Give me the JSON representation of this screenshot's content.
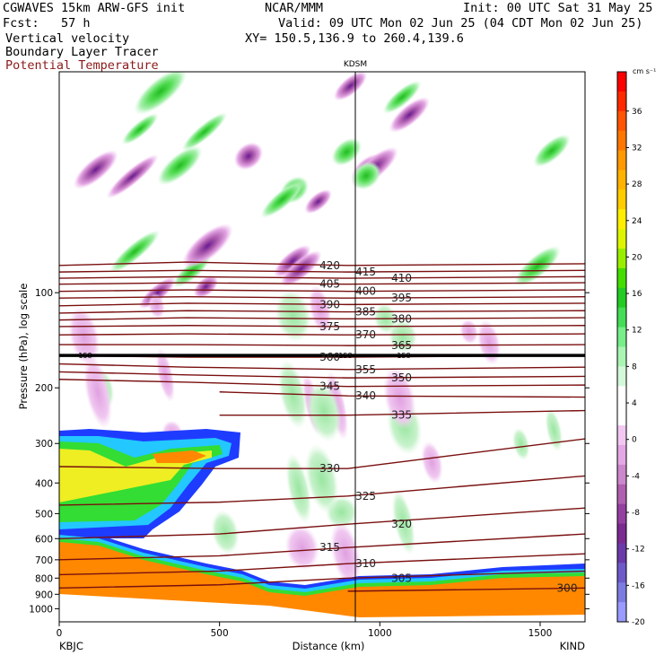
{
  "header": {
    "model": "CGWAVES 15km ARW-GFS init",
    "fcst": "Fcst:   57 h",
    "org": "NCAR/MMM",
    "init": "Init: 00 UTC Sat 31 May 25",
    "valid": "Valid: 09 UTC Mon 02 Jun 25 (04 CDT Mon 02 Jun 25)",
    "field1": "Vertical velocity",
    "field2": "Boundary Layer Tracer",
    "field3": "Potential Temperature",
    "xy": "XY= 150.5,136.9 to 260.4,139.6"
  },
  "colors": {
    "theta_contour": "#7a0f0f",
    "field3_text": "#8b1a1a",
    "tropopause": "#000000"
  },
  "chart_data": {
    "type": "heatmap",
    "title": "",
    "xlabel": "Distance (km)",
    "ylabel": "Pressure (hPa), log scale",
    "y_scale": "log",
    "xlim": [
      0,
      1640
    ],
    "ylim": [
      1100,
      20
    ],
    "x_ticks": [
      "0",
      "500",
      "1000",
      "1500"
    ],
    "y_ticks": [
      "100",
      "200",
      "300",
      "400",
      "500",
      "600",
      "700",
      "800",
      "900",
      "1000"
    ],
    "start_label": "KBJC",
    "end_label": "KIND",
    "marker_label": "KDSM",
    "marker_x_km": 950,
    "colorbar": {
      "units": "cm s⁻¹",
      "labels": [
        "36",
        "32",
        "28",
        "24",
        "20",
        "16",
        "12",
        "8",
        "4",
        "0",
        "-4",
        "-8",
        "-12",
        "-16",
        "-20"
      ],
      "colors": [
        "#ff0000",
        "#ff2a00",
        "#ff5500",
        "#ff7700",
        "#ff9900",
        "#ffb300",
        "#ffcc00",
        "#ffee00",
        "#ddf500",
        "#99ee00",
        "#44dd00",
        "#22cc22",
        "#44dd55",
        "#77ee88",
        "#aaf4b4",
        "#d4f9da",
        "#ffffff",
        "#ffffff",
        "#f2c8f2",
        "#e4a8e4",
        "#cc88cc",
        "#b060b0",
        "#9440a0",
        "#7a2a90",
        "#6a3aa8",
        "#6e5ac8",
        "#7c7ce0",
        "#9a9aff"
      ]
    },
    "theta_labels": [
      "420",
      "415",
      "410",
      "405",
      "400",
      "395",
      "390",
      "385",
      "380",
      "375",
      "370",
      "365",
      "360",
      "355",
      "350",
      "345",
      "340",
      "335",
      "330",
      "325",
      "320",
      "315",
      "310",
      "305",
      "300"
    ],
    "tropopause_labels": [
      "158",
      "158",
      "158"
    ],
    "theta_contours": [
      {
        "theta": 420,
        "points": [
          [
            0,
            82
          ],
          [
            400,
            80
          ],
          [
            900,
            82
          ],
          [
            1640,
            81
          ]
        ]
      },
      {
        "theta": 415,
        "points": [
          [
            0,
            86
          ],
          [
            400,
            85
          ],
          [
            900,
            86
          ],
          [
            1640,
            85
          ]
        ]
      },
      {
        "theta": 410,
        "points": [
          [
            0,
            90
          ],
          [
            400,
            89
          ],
          [
            900,
            90
          ],
          [
            1640,
            89
          ]
        ]
      },
      {
        "theta": 405,
        "points": [
          [
            0,
            94
          ],
          [
            400,
            93
          ],
          [
            900,
            94
          ],
          [
            1640,
            93
          ]
        ]
      },
      {
        "theta": 400,
        "points": [
          [
            0,
            99
          ],
          [
            400,
            98
          ],
          [
            900,
            99
          ],
          [
            1640,
            98
          ]
        ]
      },
      {
        "theta": 395,
        "points": [
          [
            0,
            104
          ],
          [
            400,
            103
          ],
          [
            900,
            104
          ],
          [
            1640,
            103
          ]
        ]
      },
      {
        "theta": 390,
        "points": [
          [
            0,
            110
          ],
          [
            400,
            108
          ],
          [
            900,
            109
          ],
          [
            1640,
            108
          ]
        ]
      },
      {
        "theta": 385,
        "points": [
          [
            0,
            116
          ],
          [
            400,
            114
          ],
          [
            900,
            115
          ],
          [
            1640,
            114
          ]
        ]
      },
      {
        "theta": 380,
        "points": [
          [
            0,
            122
          ],
          [
            400,
            120
          ],
          [
            900,
            121
          ],
          [
            1640,
            120
          ]
        ]
      },
      {
        "theta": 375,
        "points": [
          [
            0,
            128
          ],
          [
            400,
            127
          ],
          [
            900,
            128
          ],
          [
            1640,
            127
          ]
        ]
      },
      {
        "theta": 370,
        "points": [
          [
            0,
            136
          ],
          [
            400,
            135
          ],
          [
            900,
            136
          ],
          [
            1640,
            135
          ]
        ]
      },
      {
        "theta": 365,
        "points": [
          [
            0,
            146
          ],
          [
            400,
            146
          ],
          [
            900,
            147
          ],
          [
            1640,
            146
          ]
        ]
      },
      {
        "theta": 360,
        "points": [
          [
            0,
            158
          ],
          [
            400,
            160
          ],
          [
            900,
            160
          ],
          [
            1640,
            158
          ]
        ]
      },
      {
        "theta": 355,
        "points": [
          [
            0,
            168
          ],
          [
            400,
            172
          ],
          [
            900,
            175
          ],
          [
            1640,
            172
          ]
        ]
      },
      {
        "theta": 350,
        "points": [
          [
            0,
            178
          ],
          [
            400,
            182
          ],
          [
            900,
            186
          ],
          [
            1640,
            184
          ]
        ]
      },
      {
        "theta": 345,
        "points": [
          [
            0,
            188
          ],
          [
            400,
            192
          ],
          [
            900,
            198
          ],
          [
            1640,
            196
          ]
        ]
      },
      {
        "theta": 340,
        "points": [
          [
            500,
            206
          ],
          [
            900,
            212
          ],
          [
            1640,
            214
          ]
        ]
      },
      {
        "theta": 335,
        "points": [
          [
            500,
            244
          ],
          [
            900,
            244
          ],
          [
            1640,
            236
          ]
        ]
      },
      {
        "theta": 330,
        "points": [
          [
            0,
            355
          ],
          [
            500,
            360
          ],
          [
            900,
            360
          ],
          [
            1640,
            290
          ]
        ]
      },
      {
        "theta": 325,
        "points": [
          [
            0,
            470
          ],
          [
            500,
            460
          ],
          [
            900,
            440
          ],
          [
            1640,
            380
          ]
        ]
      },
      {
        "theta": 320,
        "points": [
          [
            0,
            600
          ],
          [
            500,
            580
          ],
          [
            900,
            540
          ],
          [
            1640,
            480
          ]
        ]
      },
      {
        "theta": 315,
        "points": [
          [
            0,
            700
          ],
          [
            500,
            680
          ],
          [
            900,
            640
          ],
          [
            1640,
            580
          ]
        ]
      },
      {
        "theta": 310,
        "points": [
          [
            0,
            780
          ],
          [
            500,
            760
          ],
          [
            900,
            720
          ],
          [
            1640,
            670
          ]
        ]
      },
      {
        "theta": 305,
        "points": [
          [
            0,
            860
          ],
          [
            500,
            840
          ],
          [
            900,
            800
          ],
          [
            1640,
            760
          ]
        ]
      },
      {
        "theta": 300,
        "points": [
          [
            900,
            880
          ],
          [
            1640,
            860
          ]
        ]
      }
    ]
  }
}
